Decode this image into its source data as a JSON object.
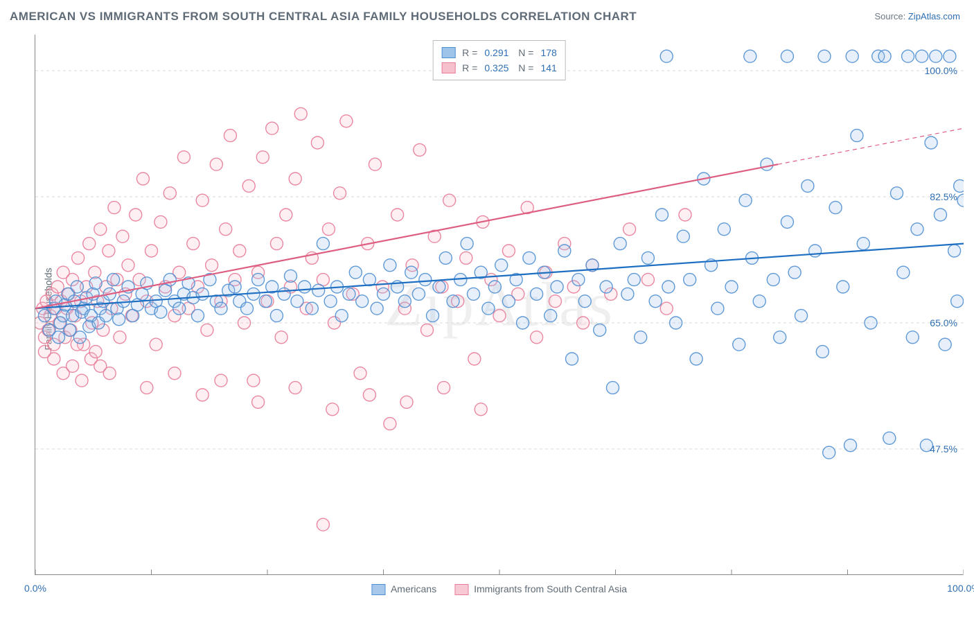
{
  "title": "AMERICAN VS IMMIGRANTS FROM SOUTH CENTRAL ASIA FAMILY HOUSEHOLDS CORRELATION CHART",
  "source_prefix": "Source: ",
  "source_name": "ZipAtlas.com",
  "ylabel": "Family Households",
  "watermark": "ZipAtlas",
  "chart": {
    "type": "scatter",
    "background_color": "#ffffff",
    "grid_color": "#d9d9d9",
    "grid_dash": "4,4",
    "axis_color": "#888888",
    "xlim": [
      0,
      100
    ],
    "ylim": [
      30,
      105
    ],
    "x_ticks_minor": [
      0,
      12.5,
      25,
      37.5,
      50,
      62.5,
      75,
      87.5,
      100
    ],
    "x_tick_labels": [
      {
        "pos": 0,
        "label": "0.0%"
      },
      {
        "pos": 100,
        "label": "100.0%"
      }
    ],
    "y_gridlines": [
      47.5,
      65.0,
      82.5,
      100.0
    ],
    "y_tick_labels": [
      {
        "pos": 47.5,
        "label": "47.5%"
      },
      {
        "pos": 65.0,
        "label": "65.0%"
      },
      {
        "pos": 82.5,
        "label": "82.5%"
      },
      {
        "pos": 100.0,
        "label": "100.0%"
      }
    ],
    "marker_radius": 9,
    "marker_stroke_width": 1.4,
    "marker_fill_opacity": 0.25,
    "line_width": 2.2,
    "series": [
      {
        "name": "Americans",
        "fill": "#9fc4ea",
        "stroke": "#4f8fd3",
        "line_color": "#1e6fc2",
        "R": "0.291",
        "N": "178",
        "regression": {
          "x0": 0,
          "y0": 67,
          "x1": 100,
          "y1": 76,
          "dash_after_x": null
        },
        "points": [
          [
            1,
            66
          ],
          [
            1.5,
            64
          ],
          [
            2,
            67
          ],
          [
            2.2,
            68
          ],
          [
            2.5,
            63
          ],
          [
            2.7,
            65
          ],
          [
            3,
            66
          ],
          [
            3.2,
            67.5
          ],
          [
            3.5,
            69
          ],
          [
            3.7,
            64
          ],
          [
            4,
            66
          ],
          [
            4.2,
            68
          ],
          [
            4.5,
            70
          ],
          [
            4.8,
            63
          ],
          [
            5,
            66.5
          ],
          [
            5.2,
            67
          ],
          [
            5.5,
            68.5
          ],
          [
            5.8,
            64.5
          ],
          [
            6,
            66
          ],
          [
            6.2,
            69
          ],
          [
            6.5,
            70.5
          ],
          [
            6.8,
            65
          ],
          [
            7,
            67
          ],
          [
            7.3,
            68
          ],
          [
            7.6,
            66
          ],
          [
            8,
            69
          ],
          [
            8.4,
            71
          ],
          [
            8.8,
            67
          ],
          [
            9,
            65.5
          ],
          [
            9.5,
            68
          ],
          [
            10,
            70
          ],
          [
            10.5,
            66
          ],
          [
            11,
            67.5
          ],
          [
            11.5,
            69
          ],
          [
            12,
            70.5
          ],
          [
            12.5,
            67
          ],
          [
            13,
            68
          ],
          [
            13.5,
            66.5
          ],
          [
            14,
            69.5
          ],
          [
            14.5,
            71
          ],
          [
            15,
            68
          ],
          [
            15.5,
            67
          ],
          [
            16,
            69
          ],
          [
            16.5,
            70.5
          ],
          [
            17,
            68.5
          ],
          [
            17.5,
            66
          ],
          [
            18,
            69
          ],
          [
            18.8,
            71
          ],
          [
            19.5,
            68
          ],
          [
            20,
            67
          ],
          [
            20.8,
            69.5
          ],
          [
            21.5,
            70
          ],
          [
            22,
            68
          ],
          [
            22.8,
            67
          ],
          [
            23.5,
            69
          ],
          [
            24,
            71
          ],
          [
            24.8,
            68
          ],
          [
            25.5,
            70
          ],
          [
            26,
            66
          ],
          [
            26.8,
            69
          ],
          [
            27.5,
            71.5
          ],
          [
            28.2,
            68
          ],
          [
            29,
            70
          ],
          [
            29.8,
            67
          ],
          [
            30.5,
            69.5
          ],
          [
            31,
            76
          ],
          [
            31.8,
            68
          ],
          [
            32.5,
            70
          ],
          [
            33,
            66
          ],
          [
            33.8,
            69
          ],
          [
            34.5,
            72
          ],
          [
            35.2,
            68
          ],
          [
            36,
            71
          ],
          [
            36.8,
            67
          ],
          [
            37.5,
            69
          ],
          [
            38.2,
            73
          ],
          [
            39,
            70
          ],
          [
            39.8,
            68
          ],
          [
            40.5,
            72
          ],
          [
            41.3,
            69
          ],
          [
            42,
            71
          ],
          [
            42.8,
            66
          ],
          [
            43.5,
            70
          ],
          [
            44.2,
            74
          ],
          [
            45,
            68
          ],
          [
            45.8,
            71
          ],
          [
            46.5,
            76
          ],
          [
            47.2,
            69
          ],
          [
            48,
            72
          ],
          [
            48.8,
            67
          ],
          [
            49.5,
            70
          ],
          [
            50.2,
            73
          ],
          [
            51,
            68
          ],
          [
            51.8,
            71
          ],
          [
            52.5,
            65
          ],
          [
            53.2,
            74
          ],
          [
            54,
            69
          ],
          [
            54.8,
            72
          ],
          [
            55.5,
            66
          ],
          [
            56.2,
            70
          ],
          [
            57,
            75
          ],
          [
            57.8,
            60
          ],
          [
            58.5,
            71
          ],
          [
            59.2,
            68
          ],
          [
            60,
            73
          ],
          [
            60.8,
            64
          ],
          [
            61.5,
            70
          ],
          [
            62.2,
            56
          ],
          [
            63,
            76
          ],
          [
            63.8,
            69
          ],
          [
            64.5,
            71
          ],
          [
            65.2,
            63
          ],
          [
            66,
            74
          ],
          [
            66.8,
            68
          ],
          [
            67.5,
            80
          ],
          [
            68.2,
            70
          ],
          [
            69,
            65
          ],
          [
            69.8,
            77
          ],
          [
            70.5,
            71
          ],
          [
            71.2,
            60
          ],
          [
            72,
            85
          ],
          [
            72.8,
            73
          ],
          [
            73.5,
            67
          ],
          [
            74.2,
            78
          ],
          [
            75,
            70
          ],
          [
            75.8,
            62
          ],
          [
            76.5,
            82
          ],
          [
            77.2,
            74
          ],
          [
            78,
            68
          ],
          [
            78.8,
            87
          ],
          [
            79.5,
            71
          ],
          [
            80.2,
            63
          ],
          [
            81,
            79
          ],
          [
            81.8,
            72
          ],
          [
            82.5,
            66
          ],
          [
            83.2,
            84
          ],
          [
            84,
            75
          ],
          [
            84.8,
            61
          ],
          [
            85.5,
            47
          ],
          [
            86.2,
            81
          ],
          [
            87,
            70
          ],
          [
            87.8,
            48
          ],
          [
            88.5,
            91
          ],
          [
            89.2,
            76
          ],
          [
            90,
            65
          ],
          [
            90.8,
            102
          ],
          [
            91.5,
            102
          ],
          [
            92,
            49
          ],
          [
            92.8,
            83
          ],
          [
            93.5,
            72
          ],
          [
            94,
            102
          ],
          [
            94.5,
            63
          ],
          [
            95,
            78
          ],
          [
            95.5,
            102
          ],
          [
            96,
            48
          ],
          [
            96.5,
            90
          ],
          [
            97,
            102
          ],
          [
            97.5,
            80
          ],
          [
            98,
            62
          ],
          [
            98.5,
            102
          ],
          [
            99,
            75
          ],
          [
            99.3,
            68
          ],
          [
            99.6,
            84
          ],
          [
            100,
            82
          ],
          [
            77,
            102
          ],
          [
            81,
            102
          ],
          [
            85,
            102
          ],
          [
            88,
            102
          ],
          [
            68,
            102
          ]
        ]
      },
      {
        "name": "Immigrants from South Central Asia",
        "fill": "#f6c1cd",
        "stroke": "#e87b97",
        "line_color": "#de5e82",
        "R": "0.325",
        "N": "141",
        "regression": {
          "x0": 0,
          "y0": 67,
          "x1": 100,
          "y1": 92,
          "dash_after_x": 80
        },
        "points": [
          [
            0.5,
            65
          ],
          [
            0.8,
            67
          ],
          [
            1,
            63
          ],
          [
            1.2,
            68
          ],
          [
            1.4,
            64
          ],
          [
            1.6,
            66
          ],
          [
            1.8,
            69
          ],
          [
            2,
            62
          ],
          [
            2.2,
            67
          ],
          [
            2.4,
            70
          ],
          [
            2.6,
            65
          ],
          [
            2.8,
            68
          ],
          [
            3,
            72
          ],
          [
            3.2,
            63
          ],
          [
            3.4,
            67
          ],
          [
            3.6,
            69
          ],
          [
            3.8,
            64
          ],
          [
            4,
            71
          ],
          [
            4.3,
            66
          ],
          [
            4.6,
            74
          ],
          [
            4.9,
            68
          ],
          [
            5.2,
            62
          ],
          [
            5.5,
            70
          ],
          [
            5.8,
            76
          ],
          [
            6.1,
            65
          ],
          [
            6.4,
            72
          ],
          [
            6.7,
            68
          ],
          [
            7,
            78
          ],
          [
            7.3,
            64
          ],
          [
            7.6,
            70
          ],
          [
            7.9,
            75
          ],
          [
            8.2,
            67
          ],
          [
            8.5,
            81
          ],
          [
            8.8,
            71
          ],
          [
            9.1,
            63
          ],
          [
            9.4,
            77
          ],
          [
            9.7,
            69
          ],
          [
            10,
            73
          ],
          [
            10.4,
            66
          ],
          [
            10.8,
            80
          ],
          [
            11.2,
            71
          ],
          [
            11.6,
            85
          ],
          [
            12,
            68
          ],
          [
            12.5,
            75
          ],
          [
            13,
            62
          ],
          [
            13.5,
            79
          ],
          [
            14,
            70
          ],
          [
            14.5,
            83
          ],
          [
            15,
            66
          ],
          [
            15.5,
            72
          ],
          [
            16,
            88
          ],
          [
            16.5,
            67
          ],
          [
            17,
            76
          ],
          [
            17.5,
            70
          ],
          [
            18,
            82
          ],
          [
            18.5,
            64
          ],
          [
            19,
            73
          ],
          [
            19.5,
            87
          ],
          [
            20,
            68
          ],
          [
            20.5,
            78
          ],
          [
            21,
            91
          ],
          [
            21.5,
            71
          ],
          [
            22,
            75
          ],
          [
            22.5,
            65
          ],
          [
            23,
            84
          ],
          [
            23.5,
            57
          ],
          [
            24,
            72
          ],
          [
            24.5,
            88
          ],
          [
            25,
            68
          ],
          [
            25.5,
            92
          ],
          [
            26,
            76
          ],
          [
            26.5,
            63
          ],
          [
            27,
            80
          ],
          [
            27.5,
            70
          ],
          [
            28,
            85
          ],
          [
            28.6,
            94
          ],
          [
            29.2,
            67
          ],
          [
            29.8,
            74
          ],
          [
            30.4,
            90
          ],
          [
            31,
            71
          ],
          [
            31.6,
            78
          ],
          [
            32.2,
            65
          ],
          [
            32.8,
            83
          ],
          [
            33.5,
            93
          ],
          [
            34.2,
            69
          ],
          [
            35,
            58
          ],
          [
            35.8,
            76
          ],
          [
            36.6,
            87
          ],
          [
            37.4,
            70
          ],
          [
            38.2,
            51
          ],
          [
            39,
            80
          ],
          [
            39.8,
            67
          ],
          [
            40.6,
            73
          ],
          [
            41.4,
            89
          ],
          [
            42.2,
            64
          ],
          [
            43,
            77
          ],
          [
            43.8,
            70
          ],
          [
            44.6,
            82
          ],
          [
            45.5,
            68
          ],
          [
            46.4,
            74
          ],
          [
            47.3,
            60
          ],
          [
            48.2,
            79
          ],
          [
            49.1,
            71
          ],
          [
            50,
            66
          ],
          [
            51,
            75
          ],
          [
            52,
            69
          ],
          [
            53,
            81
          ],
          [
            54,
            63
          ],
          [
            55,
            72
          ],
          [
            56,
            68
          ],
          [
            57,
            76
          ],
          [
            58,
            70
          ],
          [
            59,
            65
          ],
          [
            60,
            73
          ],
          [
            62,
            69
          ],
          [
            64,
            78
          ],
          [
            66,
            71
          ],
          [
            68,
            67
          ],
          [
            70,
            80
          ],
          [
            31,
            37
          ],
          [
            2,
            60
          ],
          [
            3,
            58
          ],
          [
            4,
            59
          ],
          [
            5,
            57
          ],
          [
            6,
            60
          ],
          [
            7,
            59
          ],
          [
            8,
            58
          ],
          [
            1,
            61
          ],
          [
            12,
            56
          ],
          [
            15,
            58
          ],
          [
            18,
            55
          ],
          [
            20,
            57
          ],
          [
            24,
            54
          ],
          [
            28,
            56
          ],
          [
            32,
            53
          ],
          [
            36,
            55
          ],
          [
            40,
            54
          ],
          [
            44,
            56
          ],
          [
            48,
            53
          ],
          [
            4.5,
            62
          ],
          [
            6.5,
            61
          ]
        ]
      }
    ],
    "bottom_legend": [
      {
        "label": "Americans",
        "fill": "#a7c8ea",
        "stroke": "#4f8fd3"
      },
      {
        "label": "Immigrants from South Central Asia",
        "fill": "#f6c9d4",
        "stroke": "#e87b97"
      }
    ]
  }
}
